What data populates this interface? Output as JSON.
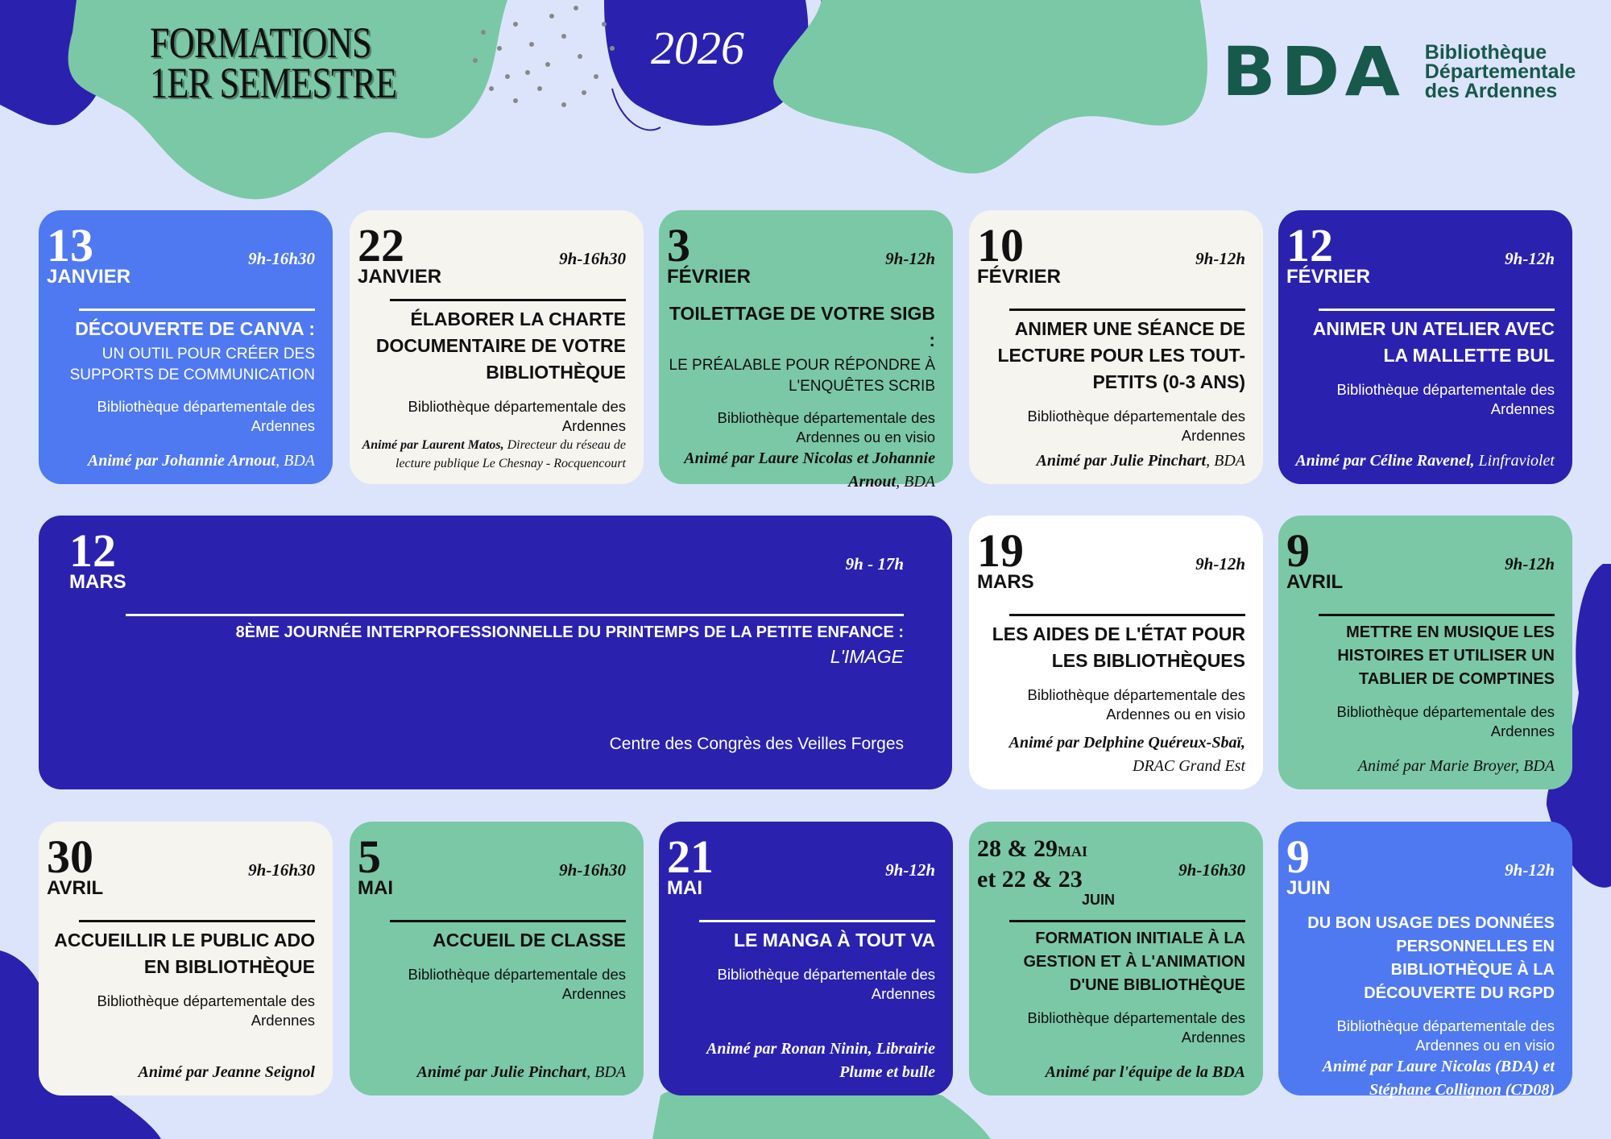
{
  "header": {
    "title_line1": "FORMATIONS",
    "title_line2": "1ER SEMESTRE",
    "year": "2026"
  },
  "logo": {
    "mark": "BDA",
    "line1": "Bibliothèque",
    "line2": "Départementale",
    "line3": "des Ardennes"
  },
  "colors": {
    "background": "#dce4fc",
    "blue": "#4f79f0",
    "cream": "#f6f4ef",
    "green": "#7bc8a6",
    "navy": "#2a22ae",
    "white": "#ffffff",
    "logo": "#17594a"
  },
  "events": [
    {
      "day": "13",
      "month": "JANVIER",
      "time": "9h-16h30",
      "title": "DÉCOUVERTE DE CANVA :",
      "subtitle": "UN OUTIL POUR CRÉER DES SUPPORTS DE COMMUNICATION",
      "location": "Bibliothèque départementale des Ardennes",
      "animator_bold": "Animé par Johannie Arnout",
      "animator_rest": ", BDA",
      "color": "blue"
    },
    {
      "day": "22",
      "month": "JANVIER",
      "time": "9h-16h30",
      "title": "ÉLABORER LA CHARTE DOCUMENTAIRE DE VOTRE BIBLIOTHÈQUE",
      "subtitle": "",
      "location": "Bibliothèque départementale des Ardennes",
      "animator_bold": "Animé par Laurent Matos,",
      "animator_rest": " Directeur du réseau de lecture publique Le Chesnay - Rocquencourt",
      "color": "cream"
    },
    {
      "day": "3",
      "month": "FÉVRIER",
      "time": "9h-12h",
      "title": "TOILETTAGE DE VOTRE SIGB :",
      "subtitle": "LE PRÉALABLE POUR RÉPONDRE  À L'ENQUÊTES SCRIB",
      "location": "Bibliothèque départementale des Ardennes ou en visio",
      "animator_bold": "Animé par Laure Nicolas et Johannie Arnout",
      "animator_rest": ", BDA",
      "color": "green"
    },
    {
      "day": "10",
      "month": "FÉVRIER",
      "time": "9h-12h",
      "title": "ANIMER UNE SÉANCE DE LECTURE POUR LES TOUT-PETITS (0-3 ANS)",
      "subtitle": "",
      "location": "Bibliothèque départementale des Ardennes",
      "animator_bold": "Animé par Julie Pinchart",
      "animator_rest": ", BDA",
      "color": "cream"
    },
    {
      "day": "12",
      "month": "FÉVRIER",
      "time": "9h-12h",
      "title": "ANIMER UN ATELIER AVEC LA MALLETTE BUL",
      "subtitle": "",
      "location": "Bibliothèque départementale des Ardennes",
      "animator_bold": "Animé par Céline Ravenel,",
      "animator_rest": " Linfraviolet",
      "color": "navy"
    },
    {
      "day": "12",
      "month": "MARS",
      "time": "9h - 17h",
      "title": "8ÈME JOURNÉE INTERPROFESSIONNELLE DU PRINTEMPS DE LA PETITE ENFANCE :",
      "subtitle": "L'IMAGE",
      "location": "Centre des Congrès des Veilles Forges",
      "animator_bold": "",
      "animator_rest": "",
      "color": "navy"
    },
    {
      "day": "19",
      "month": "MARS",
      "time": "9h-12h",
      "title": "LES AIDES DE L'ÉTAT POUR LES BIBLIOTHÈQUES",
      "subtitle": "",
      "location": "Bibliothèque départementale des Ardennes ou en visio",
      "animator_bold": "Animé par Delphine Quéreux-Sbaï,",
      "animator_rest": " DRAC Grand Est",
      "color": "white"
    },
    {
      "day": "9",
      "month": "AVRIL",
      "time": "9h-12h",
      "title": "METTRE EN MUSIQUE LES HISTOIRES ET UTILISER UN TABLIER DE COMPTINES",
      "subtitle": "",
      "location": "Bibliothèque départementale des Ardennes",
      "animator_bold": "",
      "animator_rest": "Animé par Marie Broyer, BDA",
      "color": "green"
    },
    {
      "day": "30",
      "month": "AVRIL",
      "time": "9h-16h30",
      "title": "ACCUEILLIR LE PUBLIC ADO EN BIBLIOTHÈQUE",
      "subtitle": "",
      "location": "Bibliothèque départementale des Ardennes",
      "animator_bold": "Animé par Jeanne Seignol",
      "animator_rest": "",
      "color": "cream"
    },
    {
      "day": "5",
      "month": "MAI",
      "time": "9h-16h30",
      "title": "ACCUEIL DE CLASSE",
      "subtitle": "",
      "location": "Bibliothèque départementale des Ardennes",
      "animator_bold": "Animé par Julie Pinchart",
      "animator_rest": ", BDA",
      "color": "green"
    },
    {
      "day": "21",
      "month": "MAI",
      "time": "9h-12h",
      "title": "LE MANGA À TOUT VA",
      "subtitle": "",
      "location": "Bibliothèque départementale des Ardennes",
      "animator_bold": "Animé par Ronan Ninin, Librairie Plume et bulle",
      "animator_rest": "",
      "color": "navy"
    },
    {
      "day": "28 & 29",
      "month": "MAI",
      "day2": "et 22 & 23",
      "month2": "JUIN",
      "time": "9h-16h30",
      "title": "FORMATION INITIALE À LA GESTION ET À L'ANIMATION D'UNE BIBLIOTHÈQUE",
      "subtitle": "",
      "location": "Bibliothèque départementale des Ardennes",
      "animator_bold": "Animé par l'équipe de la BDA",
      "animator_rest": "",
      "color": "green"
    },
    {
      "day": "9",
      "month": "JUIN",
      "time": "9h-12h",
      "title": "DU BON USAGE DES DONNÉES PERSONNELLES EN BIBLIOTHÈQUE À LA DÉCOUVERTE DU RGPD",
      "subtitle": "",
      "location": "Bibliothèque départementale des Ardennes ou en visio",
      "animator_bold": "Animé par Laure Nicolas (BDA) et Stéphane Collignon (CD08)",
      "animator_rest": "",
      "color": "blue"
    }
  ]
}
